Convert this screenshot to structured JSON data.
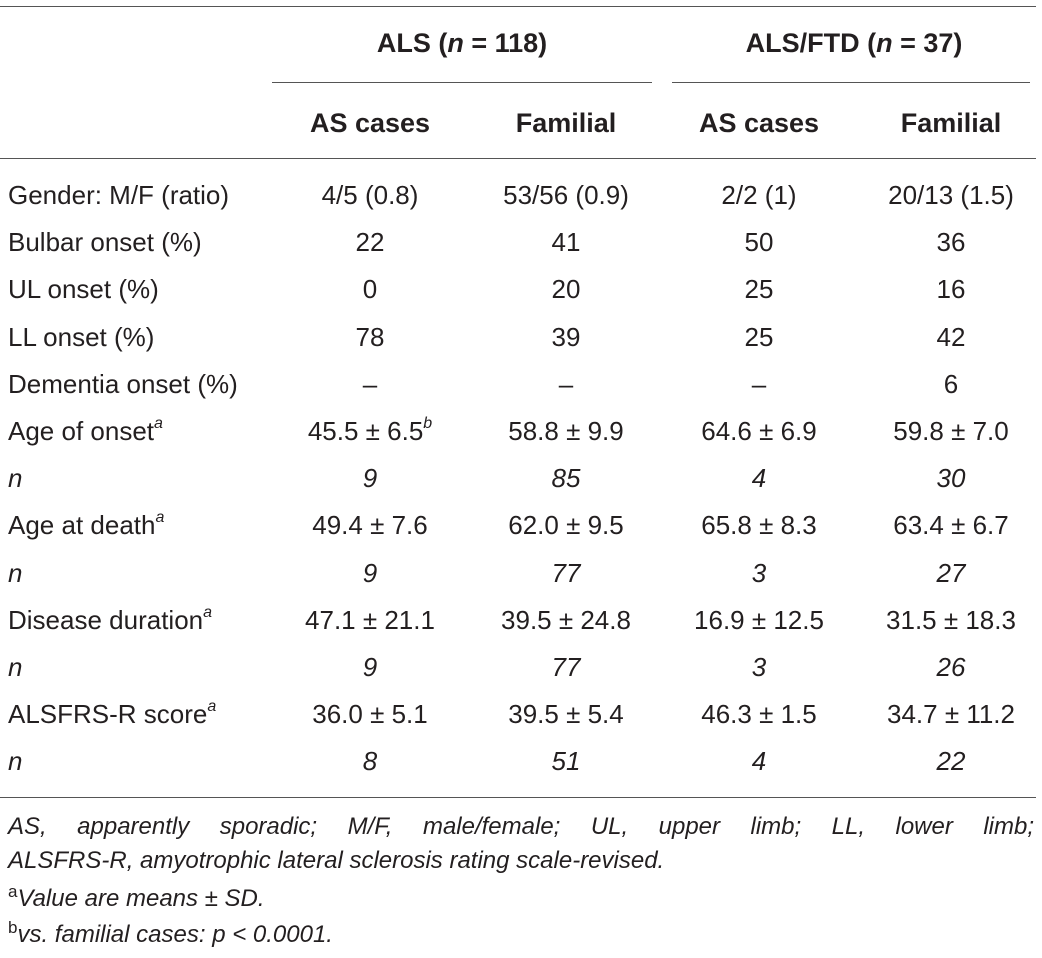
{
  "table": {
    "group_headers": [
      {
        "prefix": "ALS (",
        "n_symbol": "n",
        "suffix": " = 118)"
      },
      {
        "prefix": "ALS/FTD (",
        "n_symbol": "n",
        "suffix": " = 37)"
      }
    ],
    "sub_headers": [
      "AS cases",
      "Familial",
      "AS cases",
      "Familial"
    ],
    "rows": [
      {
        "label": "Gender: M/F (ratio)",
        "sup": "",
        "cells": [
          "4/5 (0.8)",
          "53/56 (0.9)",
          "2/2 (1)",
          "20/13 (1.5)"
        ],
        "cell1_sup": ""
      },
      {
        "label": "Bulbar onset (%)",
        "sup": "",
        "cells": [
          "22",
          "41",
          "50",
          "36"
        ],
        "cell1_sup": ""
      },
      {
        "label": "UL onset (%)",
        "sup": "",
        "cells": [
          "0",
          "20",
          "25",
          "16"
        ],
        "cell1_sup": ""
      },
      {
        "label": "LL onset (%)",
        "sup": "",
        "cells": [
          "78",
          "39",
          "25",
          "42"
        ],
        "cell1_sup": ""
      },
      {
        "label": "Dementia onset (%)",
        "sup": "",
        "cells": [
          "–",
          "–",
          "–",
          "6"
        ],
        "cell1_sup": ""
      },
      {
        "label": "Age of onset",
        "sup": "a",
        "cells": [
          "45.5 ± 6.5",
          "58.8 ± 9.9",
          "64.6 ± 6.9",
          "59.8 ± 7.0"
        ],
        "cell1_sup": "b"
      },
      {
        "label": "n",
        "sup": "",
        "cells": [
          "9",
          "85",
          "4",
          "30"
        ],
        "cell1_sup": "",
        "italic": true
      },
      {
        "label": "Age at death",
        "sup": "a",
        "cells": [
          "49.4 ± 7.6",
          "62.0 ± 9.5",
          "65.8 ± 8.3",
          "63.4 ± 6.7"
        ],
        "cell1_sup": ""
      },
      {
        "label": "n",
        "sup": "",
        "cells": [
          "9",
          "77",
          "3",
          "27"
        ],
        "cell1_sup": "",
        "italic": true
      },
      {
        "label": "Disease duration",
        "sup": "a",
        "cells": [
          "47.1 ± 21.1",
          "39.5 ± 24.8",
          "16.9 ± 12.5",
          "31.5 ± 18.3"
        ],
        "cell1_sup": ""
      },
      {
        "label": "n",
        "sup": "",
        "cells": [
          "9",
          "77",
          "3",
          "26"
        ],
        "cell1_sup": "",
        "italic": true
      },
      {
        "label": "ALSFRS-R score",
        "sup": "a",
        "cells": [
          "36.0 ± 5.1",
          "39.5 ± 5.4",
          "46.3 ± 1.5",
          "34.7 ± 11.2"
        ],
        "cell1_sup": ""
      },
      {
        "label": "n",
        "sup": "",
        "cells": [
          "8",
          "51",
          "4",
          "22"
        ],
        "cell1_sup": "",
        "italic": true
      }
    ]
  },
  "footnotes": {
    "abbrev_line1": "AS, apparently sporadic; M/F, male/female; UL, upper limb; LL, lower limb;",
    "abbrev_line2": "ALSFRS-R, amyotrophic lateral sclerosis rating scale-revised.",
    "a_marker": "a",
    "a_text": "Value are means ± SD.",
    "b_marker": "b",
    "b_text": "vs. familial cases: p < 0.0001."
  }
}
